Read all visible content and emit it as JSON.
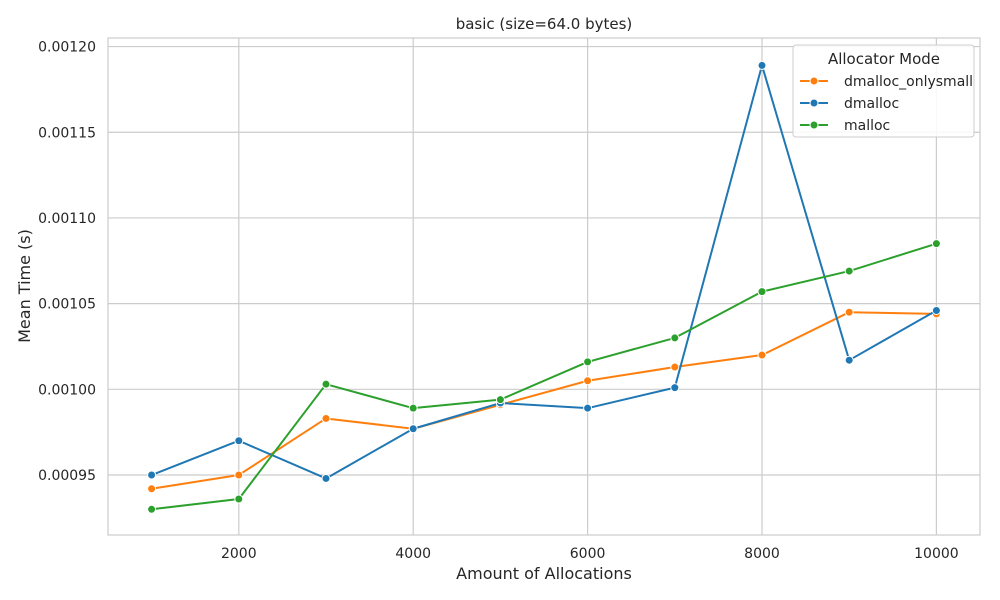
{
  "chart_data": {
    "type": "line",
    "title": "basic (size=64.0 bytes)",
    "xlabel": "Amount of Allocations",
    "ylabel": "Mean Time (s)",
    "xlim": [
      500,
      10500
    ],
    "ylim": [
      0.000915,
      0.001205
    ],
    "xticks": [
      2000,
      4000,
      6000,
      8000,
      10000
    ],
    "yticks": [
      "0.00095",
      "0.00100",
      "0.00105",
      "0.00110",
      "0.00115",
      "0.00120"
    ],
    "grid": true,
    "legend": {
      "title": "Allocator Mode",
      "placement": "top-right"
    },
    "x": [
      1000,
      2000,
      3000,
      4000,
      5000,
      6000,
      7000,
      8000,
      9000,
      10000
    ],
    "series": [
      {
        "name": "dmalloc_onlysmall",
        "color": "#ff7f0e",
        "values": [
          0.000942,
          0.00095,
          0.000983,
          0.000977,
          0.000991,
          0.001005,
          0.001013,
          0.00102,
          0.001045,
          0.001044
        ]
      },
      {
        "name": "dmalloc",
        "color": "#1f77b4",
        "values": [
          0.00095,
          0.00097,
          0.000948,
          0.000977,
          0.000992,
          0.000989,
          0.001001,
          0.001189,
          0.001017,
          0.001046
        ]
      },
      {
        "name": "malloc",
        "color": "#2ca02c",
        "values": [
          0.00093,
          0.000936,
          0.001003,
          0.000989,
          0.000994,
          0.001016,
          0.00103,
          0.001057,
          0.001069,
          0.001085
        ]
      }
    ]
  }
}
